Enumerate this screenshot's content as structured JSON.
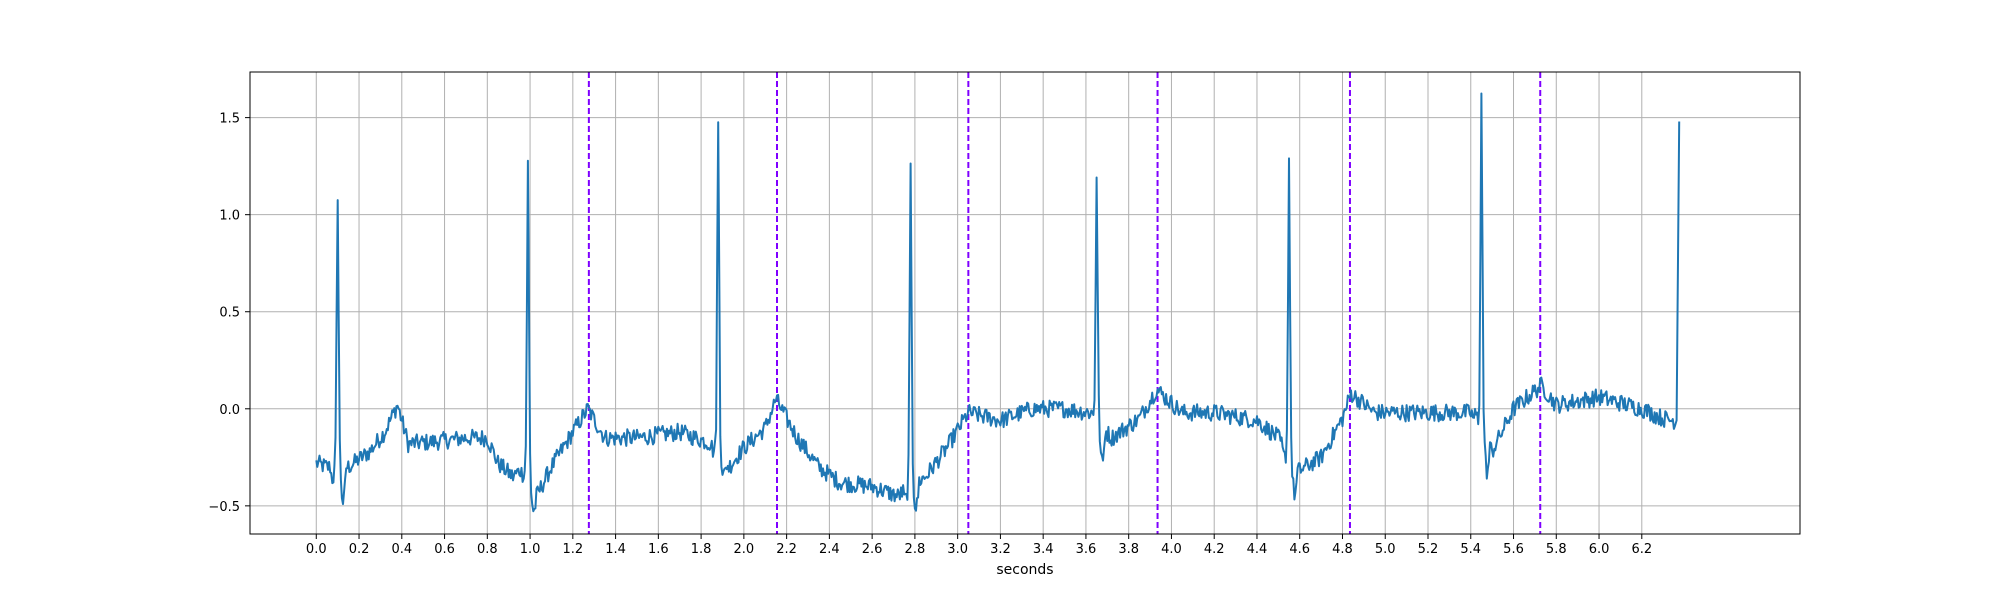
{
  "chart_data": {
    "type": "line",
    "title": "",
    "xlabel": "seconds",
    "ylabel": "",
    "xlim": [
      -0.31,
      6.94
    ],
    "ylim": [
      -0.645,
      1.735
    ],
    "grid": true,
    "x_ticks": [
      0.0,
      0.2,
      0.4,
      0.6,
      0.8,
      1.0,
      1.2,
      1.4,
      1.6,
      1.8,
      2.0,
      2.2,
      2.4,
      2.6,
      2.8,
      3.0,
      3.2,
      3.4,
      3.6,
      3.8,
      4.0,
      4.2,
      4.4,
      4.6,
      4.8,
      5.0,
      5.2,
      5.4,
      5.6,
      5.8,
      6.0,
      6.2
    ],
    "x_tick_labels": [
      "0.0",
      "0.2",
      "0.4",
      "0.6",
      "0.8",
      "1.0",
      "1.2",
      "1.4",
      "1.6",
      "1.8",
      "2.0",
      "2.2",
      "2.4",
      "2.6",
      "2.8",
      "3.0",
      "3.2",
      "3.4",
      "3.6",
      "3.8",
      "4.0",
      "4.2",
      "4.4",
      "4.6",
      "4.8",
      "5.0",
      "5.2",
      "5.4",
      "5.6",
      "5.8",
      "6.0",
      "6.2"
    ],
    "y_ticks": [
      -0.5,
      0.0,
      0.5,
      1.0,
      1.5
    ],
    "y_tick_labels": [
      "−0.5",
      "0.0",
      "0.5",
      "1.0",
      "1.5"
    ],
    "series": [
      {
        "color": "#1f77b4",
        "sample_interval_s": 0.005,
        "baseline_points": [
          [
            0.0,
            -0.28
          ],
          [
            0.05,
            -0.3
          ],
          [
            0.15,
            -0.3
          ],
          [
            0.25,
            -0.22
          ],
          [
            0.32,
            -0.12
          ],
          [
            0.38,
            0.02
          ],
          [
            0.43,
            -0.18
          ],
          [
            0.55,
            -0.17
          ],
          [
            0.7,
            -0.15
          ],
          [
            0.8,
            -0.15
          ],
          [
            0.85,
            -0.28
          ],
          [
            0.92,
            -0.35
          ],
          [
            0.97,
            -0.3
          ],
          [
            1.03,
            -0.45
          ],
          [
            1.1,
            -0.3
          ],
          [
            1.2,
            -0.12
          ],
          [
            1.27,
            0.0
          ],
          [
            1.35,
            -0.15
          ],
          [
            1.5,
            -0.15
          ],
          [
            1.7,
            -0.12
          ],
          [
            1.85,
            -0.18
          ],
          [
            1.93,
            -0.3
          ],
          [
            2.0,
            -0.2
          ],
          [
            2.1,
            -0.1
          ],
          [
            2.15,
            0.05
          ],
          [
            2.25,
            -0.15
          ],
          [
            2.35,
            -0.3
          ],
          [
            2.45,
            -0.38
          ],
          [
            2.6,
            -0.4
          ],
          [
            2.72,
            -0.45
          ],
          [
            2.78,
            -0.4
          ],
          [
            2.85,
            -0.35
          ],
          [
            2.95,
            -0.2
          ],
          [
            3.05,
            -0.02
          ],
          [
            3.2,
            -0.06
          ],
          [
            3.35,
            0.0
          ],
          [
            3.5,
            0.0
          ],
          [
            3.62,
            -0.02
          ],
          [
            3.72,
            -0.15
          ],
          [
            3.85,
            -0.05
          ],
          [
            3.93,
            0.1
          ],
          [
            4.05,
            -0.02
          ],
          [
            4.2,
            -0.02
          ],
          [
            4.4,
            -0.06
          ],
          [
            4.5,
            -0.15
          ],
          [
            4.58,
            -0.33
          ],
          [
            4.7,
            -0.25
          ],
          [
            4.8,
            -0.05
          ],
          [
            4.84,
            0.08
          ],
          [
            4.95,
            -0.02
          ],
          [
            5.2,
            -0.02
          ],
          [
            5.4,
            -0.02
          ],
          [
            5.5,
            -0.22
          ],
          [
            5.6,
            0.0
          ],
          [
            5.73,
            0.12
          ],
          [
            5.8,
            0.02
          ],
          [
            6.0,
            0.06
          ],
          [
            6.2,
            0.0
          ],
          [
            6.3,
            -0.05
          ],
          [
            6.35,
            -0.06
          ]
        ],
        "beats": [
          {
            "t": 0.1,
            "peak": 1.11,
            "q": -0.36,
            "s": -0.48
          },
          {
            "t": 0.99,
            "peak": 1.26,
            "q": -0.38,
            "s": -0.46
          },
          {
            "t": 1.88,
            "peak": 1.46,
            "q": -0.25,
            "s": -0.3
          },
          {
            "t": 2.78,
            "peak": 1.24,
            "q": -0.45,
            "s": -0.53
          },
          {
            "t": 3.65,
            "peak": 1.21,
            "q": -0.05,
            "s": -0.25
          },
          {
            "t": 4.55,
            "peak": 1.28,
            "q": -0.3,
            "s": -0.38
          },
          {
            "t": 5.45,
            "peak": 1.63,
            "q": -0.08,
            "s": -0.27
          }
        ],
        "end_point": [
          6.375,
          1.48
        ]
      }
    ],
    "vlines": {
      "x": [
        1.275,
        2.155,
        3.05,
        3.935,
        4.835,
        5.725
      ],
      "color": "#7f00ff",
      "style": "dashed"
    }
  }
}
